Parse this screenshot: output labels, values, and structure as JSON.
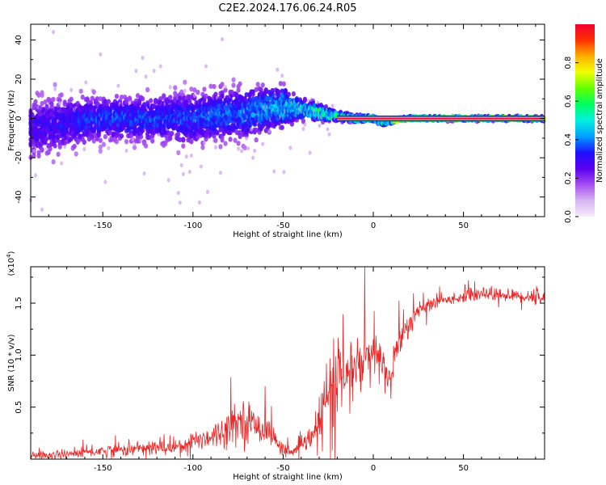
{
  "title": "C2E2.2024.176.06.24.R05",
  "colors": {
    "snr_line": "#ee2222",
    "colormap": [
      "#f4ecfb",
      "#d7b4f3",
      "#a64df0",
      "#5a00f0",
      "#1e10ff",
      "#00a0ff",
      "#00f0e0",
      "#00ff60",
      "#60ff00",
      "#f0ff00",
      "#ffb000",
      "#ff3000",
      "#f00030"
    ]
  },
  "chart_data": [
    {
      "type": "heatmap",
      "title": "C2E2.2024.176.06.24.R05",
      "xlabel": "Height of straight line (km)",
      "ylabel": "Frequency (Hz)",
      "xlim": [
        -190,
        95
      ],
      "ylim": [
        -50,
        48
      ],
      "xticks": [
        -150,
        -100,
        -50,
        0,
        50
      ],
      "yticks": [
        -40,
        -20,
        0,
        20,
        40
      ],
      "colorbar": {
        "label": "Normalized spectral amplitude",
        "range": [
          0.0,
          1.0
        ],
        "ticks": [
          "0.0",
          "0.2",
          "0.4",
          "0.6",
          "0.8"
        ]
      },
      "ridge": {
        "x": [
          -190,
          -150,
          -100,
          -70,
          -50,
          -40,
          -30,
          -20,
          -10,
          0,
          5,
          10,
          20,
          50,
          95
        ],
        "center_freq": [
          -5,
          0,
          0,
          3,
          6,
          5,
          3,
          1,
          0,
          0,
          -2,
          -1,
          0,
          0,
          0
        ],
        "spread": [
          12,
          8,
          10,
          10,
          8,
          4,
          3,
          1.5,
          1.2,
          1,
          1,
          1,
          0.8,
          0.8,
          0.8
        ],
        "peak_amplitude": [
          0.2,
          0.3,
          0.3,
          0.35,
          0.45,
          0.55,
          0.7,
          0.85,
          0.95,
          1.0,
          1.0,
          0.9,
          0.95,
          1.0,
          1.0
        ]
      }
    },
    {
      "type": "line",
      "xlabel": "Height of straight line (km)",
      "ylabel": "SNR (10 * v/v)",
      "y_multiplier": "(x10",
      "y_multiplier_exponent": "4",
      "y_multiplier_close": ")",
      "xlim": [
        -190,
        95
      ],
      "ylim": [
        0,
        18500
      ],
      "xticks": [
        -150,
        -100,
        -50,
        0,
        50
      ],
      "yticks": [
        5000,
        10000,
        15000
      ],
      "ytick_labels": [
        "0.5",
        "1.0",
        "1.5"
      ],
      "series": [
        {
          "x": [
            -190,
            -170,
            -150,
            -130,
            -110,
            -95,
            -85,
            -78,
            -72,
            -65,
            -58,
            -52,
            -45,
            -38,
            -32,
            -28,
            -24,
            -20,
            -16,
            -12,
            -8,
            -4,
            0,
            5,
            8,
            10,
            12,
            15,
            20,
            25,
            30,
            40,
            50,
            55,
            60,
            70,
            80,
            90,
            95
          ],
          "y": [
            300,
            500,
            800,
            1000,
            1200,
            2000,
            2500,
            3500,
            3800,
            3200,
            2800,
            1200,
            600,
            1500,
            2500,
            4500,
            7000,
            8000,
            7500,
            8500,
            9000,
            9500,
            10000,
            9200,
            8000,
            7500,
            10500,
            11500,
            13000,
            14200,
            14800,
            15300,
            15600,
            15800,
            16000,
            15800,
            15700,
            15600,
            15500
          ],
          "noise": [
            300,
            400,
            500,
            600,
            700,
            900,
            1200,
            1500,
            1700,
            1400,
            1100,
            600,
            400,
            800,
            1200,
            3000,
            3500,
            3500,
            3000,
            3000,
            2500,
            2500,
            2200,
            2000,
            1800,
            1800,
            1500,
            1200,
            1000,
            800,
            600,
            400,
            400,
            600,
            700,
            500,
            500,
            700,
            600
          ]
        }
      ]
    }
  ]
}
